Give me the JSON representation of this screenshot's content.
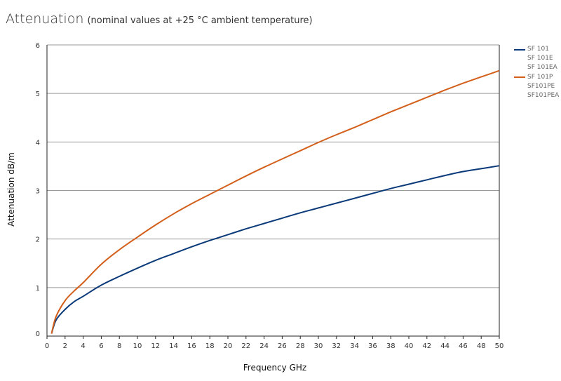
{
  "title": {
    "main": "Attenuation",
    "sub": "(nominal values at +25 °C ambient temperature)"
  },
  "colors": {
    "series_a": "#0b3a7a",
    "series_b": "#d35f1a",
    "grid": "#999999",
    "axis": "#222222"
  },
  "legend": [
    {
      "labels": [
        "SF 101",
        "SF 101E",
        "SF 101EA"
      ],
      "color": "#0b3a7a"
    },
    {
      "labels": [
        "SF 101P",
        "SF101PE",
        "SF101PEA"
      ],
      "color": "#d35f1a"
    }
  ],
  "chart_data": {
    "type": "line",
    "title": "",
    "xlabel": "Frequency GHz",
    "ylabel": "Attenuation dB/m",
    "xlim": [
      0,
      50
    ],
    "ylim": [
      0,
      6
    ],
    "xticks": [
      0,
      2,
      4,
      6,
      8,
      10,
      12,
      14,
      16,
      18,
      20,
      22,
      24,
      26,
      28,
      30,
      32,
      34,
      36,
      38,
      40,
      42,
      44,
      46,
      48,
      50
    ],
    "yticks": [
      0,
      1,
      2,
      3,
      4,
      5,
      6
    ],
    "grid": "horizontal",
    "legend_position": "right",
    "series": [
      {
        "legend_labels": [
          "SF 101",
          "SF 101E",
          "SF 101EA"
        ],
        "color": "#0b3a7a",
        "x": [
          0.5,
          1,
          2,
          3,
          4,
          6,
          8,
          10,
          12,
          14,
          16,
          18,
          20,
          22,
          24,
          26,
          28,
          30,
          32,
          34,
          36,
          38,
          40,
          42,
          44,
          46,
          48,
          50
        ],
        "y": [
          0.05,
          0.33,
          0.55,
          0.71,
          0.82,
          1.05,
          1.23,
          1.4,
          1.56,
          1.7,
          1.84,
          1.97,
          2.09,
          2.21,
          2.32,
          2.43,
          2.54,
          2.64,
          2.74,
          2.84,
          2.94,
          3.04,
          3.13,
          3.22,
          3.31,
          3.39,
          3.45,
          3.51
        ]
      },
      {
        "legend_labels": [
          "SF 101P",
          "SF101PE",
          "SF101PEA"
        ],
        "color": "#d35f1a",
        "x": [
          0.5,
          1,
          2,
          3,
          4,
          6,
          8,
          10,
          12,
          14,
          16,
          18,
          20,
          22,
          24,
          26,
          28,
          30,
          32,
          34,
          36,
          38,
          40,
          42,
          44,
          46,
          48,
          50
        ],
        "y": [
          0.05,
          0.4,
          0.73,
          0.93,
          1.1,
          1.48,
          1.78,
          2.04,
          2.29,
          2.52,
          2.73,
          2.92,
          3.11,
          3.3,
          3.48,
          3.65,
          3.82,
          3.99,
          4.15,
          4.3,
          4.46,
          4.62,
          4.77,
          4.92,
          5.07,
          5.21,
          5.34,
          5.47
        ]
      }
    ]
  }
}
